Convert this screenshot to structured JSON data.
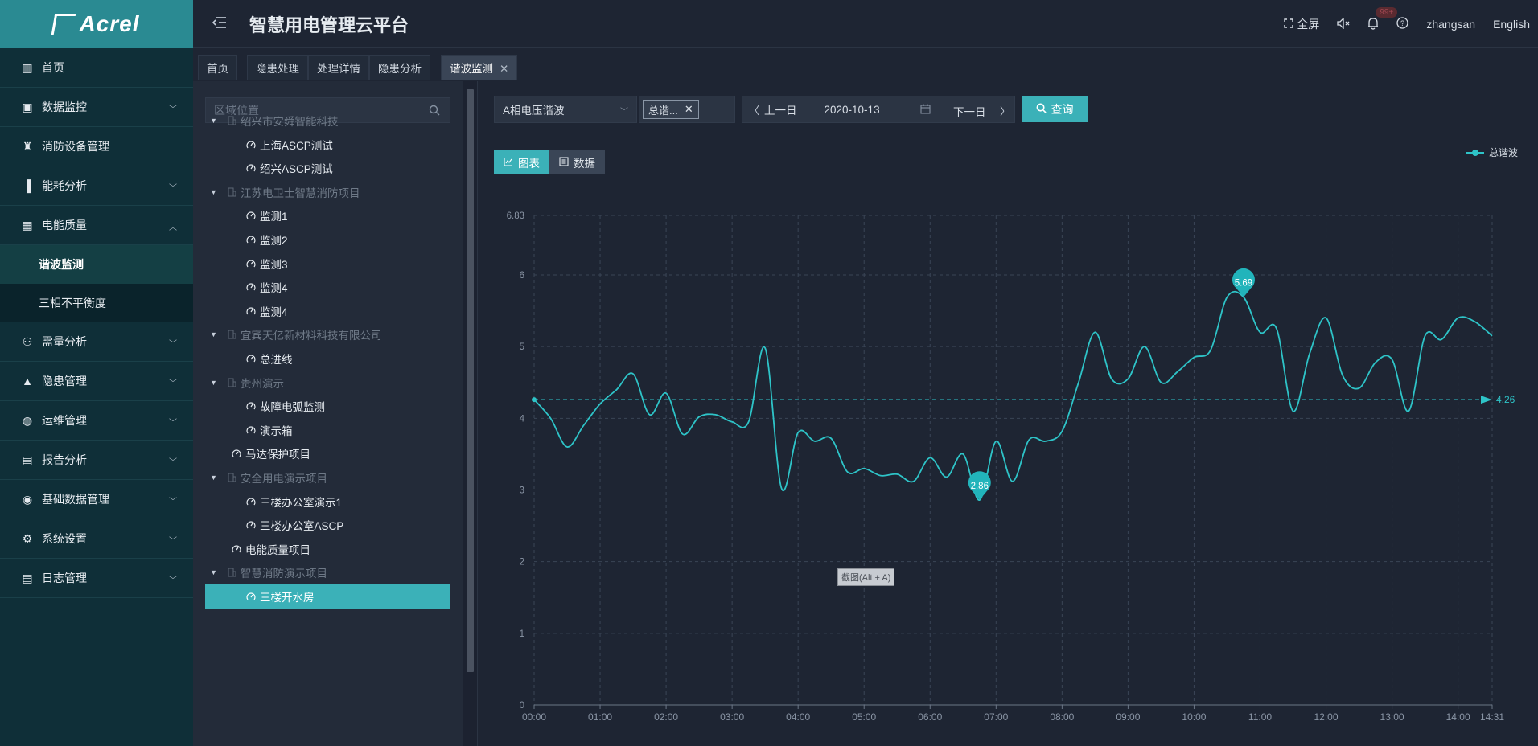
{
  "brand": {
    "logo_text": "Acrel"
  },
  "header": {
    "title": "智慧用电管理云平台",
    "fullscreen": "全屏",
    "badge": "99+",
    "user": "zhangsan",
    "language": "English"
  },
  "sidebar": {
    "items": [
      {
        "label": "首页",
        "icon": "home-icon"
      },
      {
        "label": "数据监控",
        "icon": "monitor-icon"
      },
      {
        "label": "消防设备管理",
        "icon": "fire-extinguisher-icon"
      },
      {
        "label": "能耗分析",
        "icon": "bar-chart-icon"
      },
      {
        "label": "电能质量",
        "icon": "calendar-icon"
      },
      {
        "label": "需量分析",
        "icon": "network-icon"
      },
      {
        "label": "隐患管理",
        "icon": "warning-icon"
      },
      {
        "label": "运维管理",
        "icon": "globe-icon"
      },
      {
        "label": "报告分析",
        "icon": "report-icon"
      },
      {
        "label": "基础数据管理",
        "icon": "database-icon"
      },
      {
        "label": "系统设置",
        "icon": "settings-icon"
      },
      {
        "label": "日志管理",
        "icon": "log-icon"
      }
    ],
    "sub_items": [
      "谐波监测",
      "三相不平衡度"
    ]
  },
  "tabs": [
    "首页",
    "隐患处理",
    "处理详情",
    "隐患分析",
    "谐波监测"
  ],
  "tree": {
    "search_placeholder": "区域位置",
    "rows": [
      {
        "label": "绍兴市安舜智能科技",
        "kind": "group"
      },
      {
        "label": "上海ASCP测试",
        "kind": "leaf2"
      },
      {
        "label": "绍兴ASCP测试",
        "kind": "leaf2"
      },
      {
        "label": "江苏电卫士智慧消防项目",
        "kind": "group"
      },
      {
        "label": "监测1",
        "kind": "leaf2"
      },
      {
        "label": "监测2",
        "kind": "leaf2"
      },
      {
        "label": "监测3",
        "kind": "leaf2"
      },
      {
        "label": "监测4",
        "kind": "leaf2"
      },
      {
        "label": "监测4",
        "kind": "leaf2"
      },
      {
        "label": "宜宾天亿新材料科技有限公司",
        "kind": "group"
      },
      {
        "label": "总进线",
        "kind": "leaf2"
      },
      {
        "label": "贵州演示",
        "kind": "group"
      },
      {
        "label": "故障电弧监测",
        "kind": "leaf2"
      },
      {
        "label": "演示箱",
        "kind": "leaf2"
      },
      {
        "label": "马达保护项目",
        "kind": "leaf1"
      },
      {
        "label": "安全用电演示项目",
        "kind": "group"
      },
      {
        "label": "三楼办公室演示1",
        "kind": "leaf2"
      },
      {
        "label": "三楼办公室ASCP",
        "kind": "leaf2"
      },
      {
        "label": "电能质量项目",
        "kind": "leaf1"
      },
      {
        "label": "智慧消防演示项目",
        "kind": "group"
      },
      {
        "label": "三楼开水房",
        "kind": "leaf2"
      }
    ]
  },
  "toolbar": {
    "series_select": "A相电压谐波",
    "tag": "总谐...",
    "prev_day": "上一日",
    "date": "2020-10-13",
    "next_day": "下一日",
    "query": "查询"
  },
  "view_toggle": {
    "chart": "图表",
    "data": "数据"
  },
  "screenshot_hint": "截图(Alt + A)",
  "colors": {
    "accent": "#3bb1b8",
    "line": "#2ec4c8",
    "bg": "#1e2533"
  },
  "chart_data": {
    "type": "line",
    "series": [
      {
        "name": "总谐波",
        "x": [
          "00:00",
          "00:15",
          "00:30",
          "00:45",
          "01:00",
          "01:15",
          "01:30",
          "01:45",
          "02:00",
          "02:15",
          "02:30",
          "02:45",
          "03:00",
          "03:15",
          "03:30",
          "03:45",
          "04:00",
          "04:15",
          "04:30",
          "04:45",
          "05:00",
          "05:15",
          "05:30",
          "05:45",
          "06:00",
          "06:15",
          "06:30",
          "06:45",
          "07:00",
          "07:15",
          "07:30",
          "07:45",
          "08:00",
          "08:15",
          "08:30",
          "08:45",
          "09:00",
          "09:15",
          "09:30",
          "09:45",
          "10:00",
          "10:15",
          "10:30",
          "10:45",
          "11:00",
          "11:15",
          "11:30",
          "11:45",
          "12:00",
          "12:15",
          "12:30",
          "12:45",
          "13:00",
          "13:15",
          "13:30",
          "13:45",
          "14:00",
          "14:15",
          "14:31"
        ],
        "values": [
          4.26,
          4.0,
          3.6,
          3.9,
          4.2,
          4.4,
          4.62,
          4.05,
          4.35,
          3.78,
          4.02,
          4.05,
          3.95,
          3.95,
          4.98,
          3.02,
          3.8,
          3.68,
          3.72,
          3.25,
          3.3,
          3.2,
          3.22,
          3.12,
          3.45,
          3.18,
          3.5,
          2.86,
          3.68,
          3.12,
          3.7,
          3.68,
          3.82,
          4.5,
          5.2,
          4.55,
          4.55,
          5.0,
          4.5,
          4.65,
          4.85,
          4.95,
          5.69,
          5.69,
          5.2,
          5.25,
          4.1,
          4.9,
          5.4,
          4.6,
          4.42,
          4.78,
          4.82,
          4.1,
          5.15,
          5.1,
          5.4,
          5.35,
          5.15
        ]
      }
    ],
    "y_ticks": [
      0,
      1,
      2,
      3,
      4,
      5,
      6,
      6.83
    ],
    "x_ticks": [
      "00:00",
      "01:00",
      "02:00",
      "03:00",
      "04:00",
      "05:00",
      "06:00",
      "07:00",
      "08:00",
      "09:00",
      "10:00",
      "11:00",
      "12:00",
      "13:00",
      "14:00",
      "14:31"
    ],
    "ylim": [
      0,
      6.83
    ],
    "x_range_minutes": [
      0,
      871
    ],
    "max": {
      "value": 5.69,
      "time": "10:45"
    },
    "min": {
      "value": 2.86,
      "time": "06:45"
    },
    "average": 4.26,
    "grid": true,
    "legend": "top-right"
  }
}
